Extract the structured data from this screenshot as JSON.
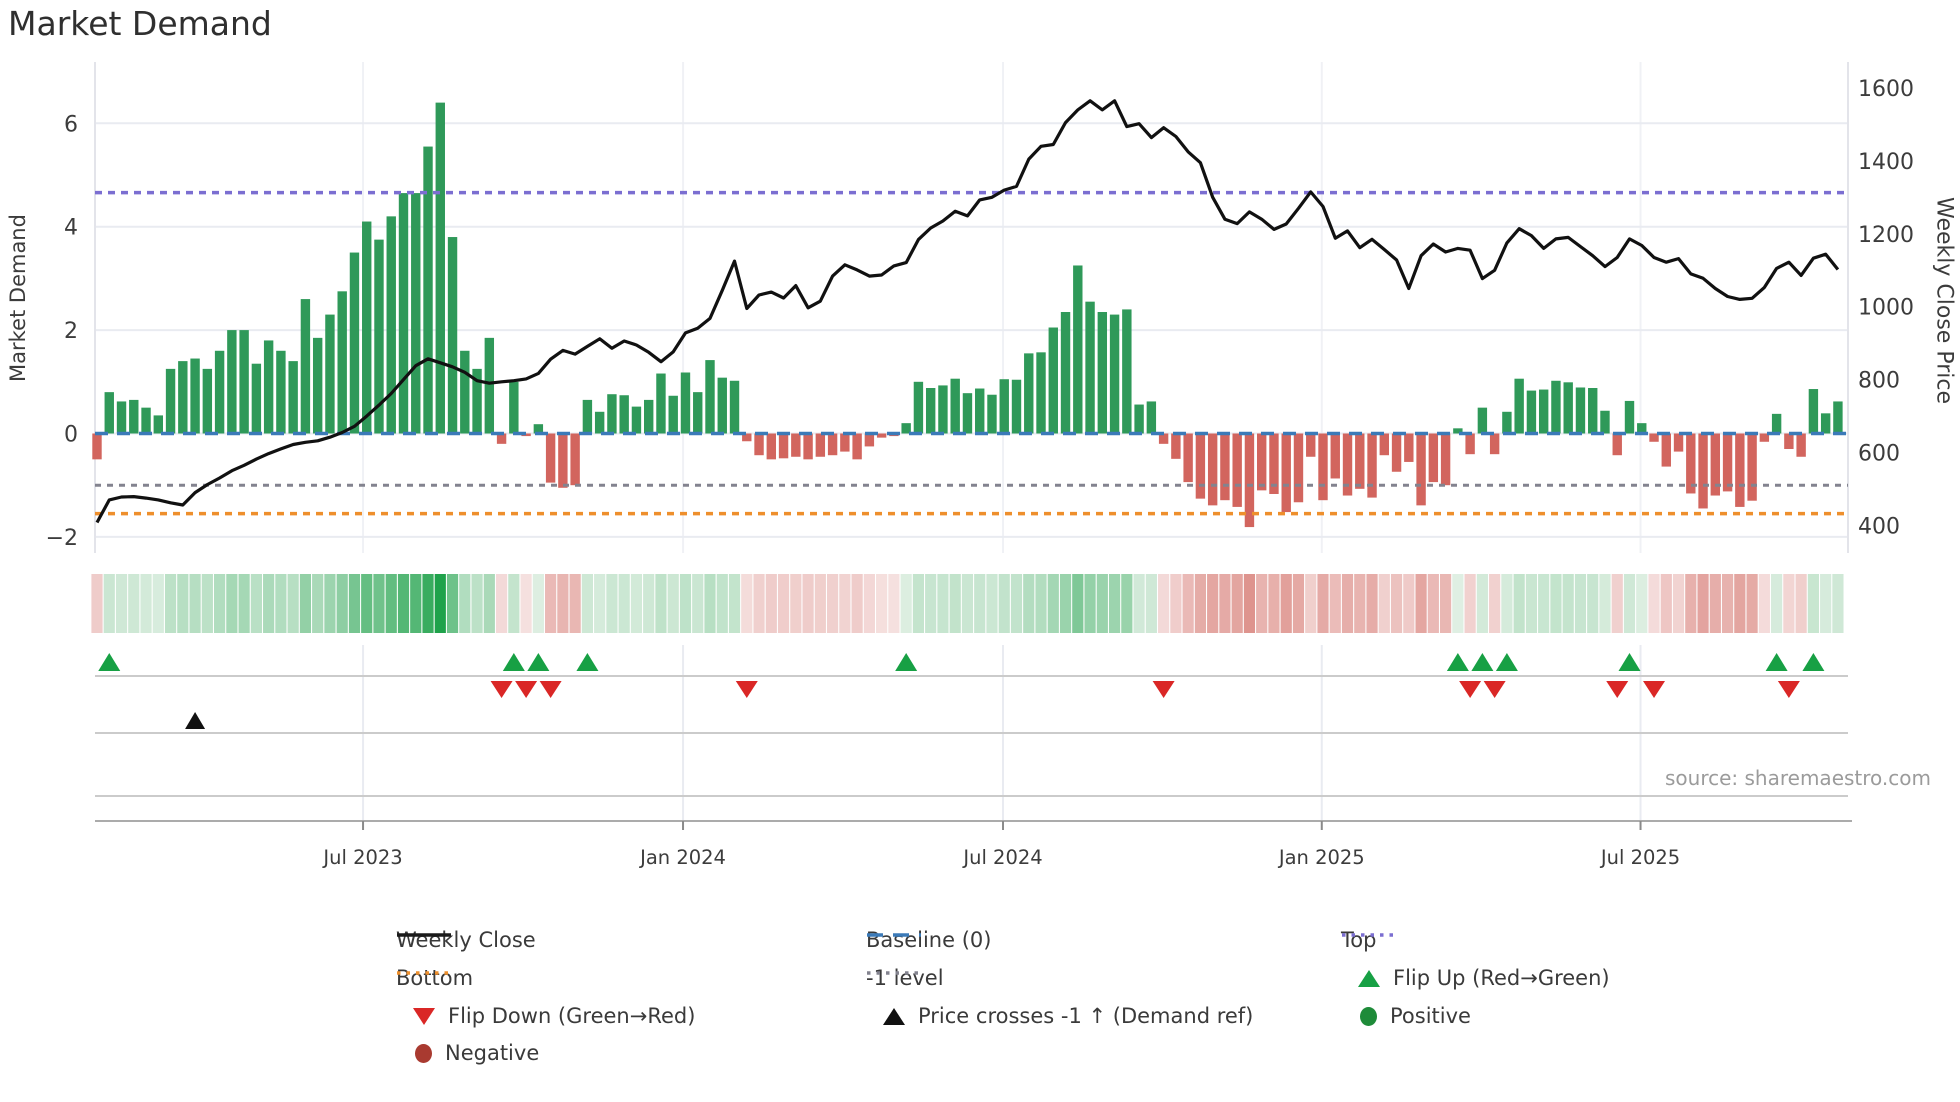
{
  "title": "Market Demand",
  "source_note": "source: sharemaestro.com",
  "axes": {
    "left_label": "Market Demand",
    "right_label": "Weekly Close Price",
    "left_tick_labels": [
      "6",
      "4",
      "2",
      "0",
      "−2"
    ],
    "left_tick_values": [
      6,
      4,
      2,
      0,
      -2
    ],
    "right_tick_labels": [
      "1600",
      "1400",
      "1200",
      "1000",
      "800",
      "600",
      "400"
    ],
    "right_tick_values": [
      1600,
      1400,
      1200,
      1000,
      800,
      600,
      400
    ]
  },
  "legend": {
    "columns": [
      {
        "items": [
          {
            "label": "Weekly Close",
            "swatch": "line-solid",
            "color": "#1a1a1a"
          },
          {
            "label": "Bottom",
            "swatch": "line-dotted",
            "color": "#ee8f2c"
          },
          {
            "label": "Flip Down (Green→Red)",
            "swatch": "triangle-down",
            "color": "#da2726"
          },
          {
            "label": "Negative",
            "swatch": "circle",
            "color": "#a93a30"
          }
        ]
      },
      {
        "items": [
          {
            "label": "Baseline (0)",
            "swatch": "line-dashed",
            "color": "#3b7ab8"
          },
          {
            "label": "-1 level",
            "swatch": "line-dotted",
            "color": "#83838f"
          },
          {
            "label": "Price crosses -1 ↑ (Demand ref)",
            "swatch": "triangle-up",
            "color": "#111111"
          }
        ]
      },
      {
        "items": [
          {
            "label": "Top",
            "swatch": "line-dotted",
            "color": "#7b6ed1"
          },
          {
            "label": "Flip Up (Red→Green)",
            "swatch": "triangle-up",
            "color": "#17a044"
          },
          {
            "label": "Positive",
            "swatch": "circle",
            "color": "#1e8b39"
          }
        ]
      }
    ]
  },
  "chart_data": {
    "type": "bar+line",
    "title": "Market Demand",
    "x_tick_labels": [
      "Jul 2023",
      "Jan 2024",
      "Jul 2024",
      "Jan 2025",
      "Jul 2025"
    ],
    "x_tick_weeks": [
      21.7,
      47.8,
      73.9,
      99.9,
      125.9
    ],
    "weeks": 143,
    "ylabel_left": "Market Demand",
    "ylabel_right": "Weekly Close Price",
    "ylim_demand": [
      -2.4,
      6.9
    ],
    "ylim_price": [
      400,
      1600
    ],
    "grid": true,
    "legend_position": "bottom",
    "ref_levels": {
      "top": 4.66,
      "baseline": 0,
      "minus1": -1,
      "bottom": -1.55
    },
    "series": [
      {
        "name": "Market Demand",
        "type": "bar",
        "axis": "left",
        "positive_color": "#2f9959",
        "negative_color": "#d2655e",
        "values": [
          -0.5,
          0.8,
          0.62,
          0.65,
          0.5,
          0.35,
          1.25,
          1.4,
          1.45,
          1.25,
          1.6,
          2.0,
          2.0,
          1.35,
          1.8,
          1.6,
          1.4,
          2.6,
          1.85,
          2.3,
          2.75,
          3.5,
          4.1,
          3.75,
          4.2,
          4.65,
          4.65,
          5.55,
          6.4,
          3.8,
          1.6,
          1.25,
          1.85,
          -0.2,
          1.0,
          -0.05,
          0.18,
          -0.95,
          -1.05,
          -1.0,
          0.65,
          0.42,
          0.76,
          0.74,
          0.52,
          0.65,
          1.16,
          0.73,
          1.18,
          0.8,
          1.42,
          1.08,
          1.02,
          -0.15,
          -0.42,
          -0.5,
          -0.48,
          -0.45,
          -0.5,
          -0.45,
          -0.42,
          -0.35,
          -0.5,
          -0.25,
          -0.08,
          -0.05,
          0.2,
          1.0,
          0.88,
          0.93,
          1.06,
          0.78,
          0.87,
          0.75,
          1.05,
          1.04,
          1.55,
          1.57,
          2.05,
          2.35,
          3.25,
          2.55,
          2.35,
          2.3,
          2.4,
          0.56,
          0.62,
          -0.2,
          -0.49,
          -0.94,
          -1.26,
          -1.39,
          -1.29,
          -1.42,
          -1.81,
          -1.1,
          -1.17,
          -1.52,
          -1.33,
          -0.45,
          -1.29,
          -0.87,
          -1.2,
          -1.07,
          -1.24,
          -0.42,
          -0.74,
          -0.55,
          -1.39,
          -0.94,
          -1.0,
          0.1,
          -0.4,
          0.5,
          -0.4,
          0.42,
          1.06,
          0.83,
          0.85,
          1.02,
          0.99,
          0.89,
          0.88,
          0.44,
          -0.42,
          0.63,
          0.2,
          -0.16,
          -0.64,
          -0.35,
          -1.16,
          -1.45,
          -1.2,
          -1.12,
          -1.42,
          -1.3,
          -0.16,
          0.38,
          -0.3,
          -0.45,
          0.86,
          0.39,
          0.62
        ]
      },
      {
        "name": "Weekly Close",
        "type": "line",
        "axis": "right",
        "color": "#111111",
        "values": [
          408,
          470,
          478,
          479,
          475,
          470,
          462,
          456,
          490,
          512,
          530,
          550,
          565,
          582,
          597,
          610,
          622,
          628,
          632,
          642,
          655,
          672,
          700,
          730,
          762,
          800,
          838,
          857,
          846,
          835,
          820,
          797,
          790,
          794,
          797,
          802,
          817,
          856,
          880,
          870,
          891,
          912,
          886,
          906,
          895,
          875,
          849,
          876,
          928,
          941,
          968,
          1045,
          1125,
          995,
          1032,
          1040,
          1024,
          1058,
          997,
          1015,
          1084,
          1115,
          1101,
          1084,
          1087,
          1112,
          1121,
          1184,
          1216,
          1235,
          1262,
          1249,
          1293,
          1300,
          1320,
          1330,
          1405,
          1440,
          1445,
          1505,
          1540,
          1565,
          1540,
          1565,
          1494,
          1502,
          1464,
          1491,
          1467,
          1425,
          1395,
          1300,
          1240,
          1228,
          1260,
          1240,
          1212,
          1227,
          1270,
          1315,
          1275,
          1188,
          1208,
          1162,
          1185,
          1157,
          1128,
          1050,
          1140,
          1172,
          1150,
          1160,
          1155,
          1077,
          1100,
          1175,
          1214,
          1195,
          1160,
          1186,
          1190,
          1165,
          1140,
          1110,
          1135,
          1186,
          1168,
          1135,
          1122,
          1132,
          1090,
          1078,
          1050,
          1028,
          1020,
          1023,
          1053,
          1105,
          1122,
          1086,
          1133,
          1144,
          1102
        ]
      }
    ],
    "heatmap": {
      "desc": "weekly strip below chart: color intensity follows demand bar values",
      "positive_scale": [
        "#e2f0e5",
        "#1fa24b"
      ],
      "negative_scale": [
        "#f6e2e1",
        "#dd908a"
      ]
    },
    "markers": {
      "flip_up_weeks": [
        1,
        34,
        36,
        40,
        66,
        111,
        113,
        115,
        125,
        137,
        140
      ],
      "flip_down_weeks": [
        33,
        35,
        37,
        53,
        87,
        112,
        114,
        124,
        127,
        138
      ],
      "price_cross_weeks": [
        8
      ]
    },
    "colors": {
      "top": "#7b6ed1",
      "baseline": "#3b7ab8",
      "minus1": "#83838f",
      "bottom": "#ee8f2c",
      "flip_up": "#17a044",
      "flip_down": "#da2726",
      "price_cross": "#111111",
      "gridline": "#e9ebf1",
      "axis_text": "#3c3c3c"
    }
  }
}
